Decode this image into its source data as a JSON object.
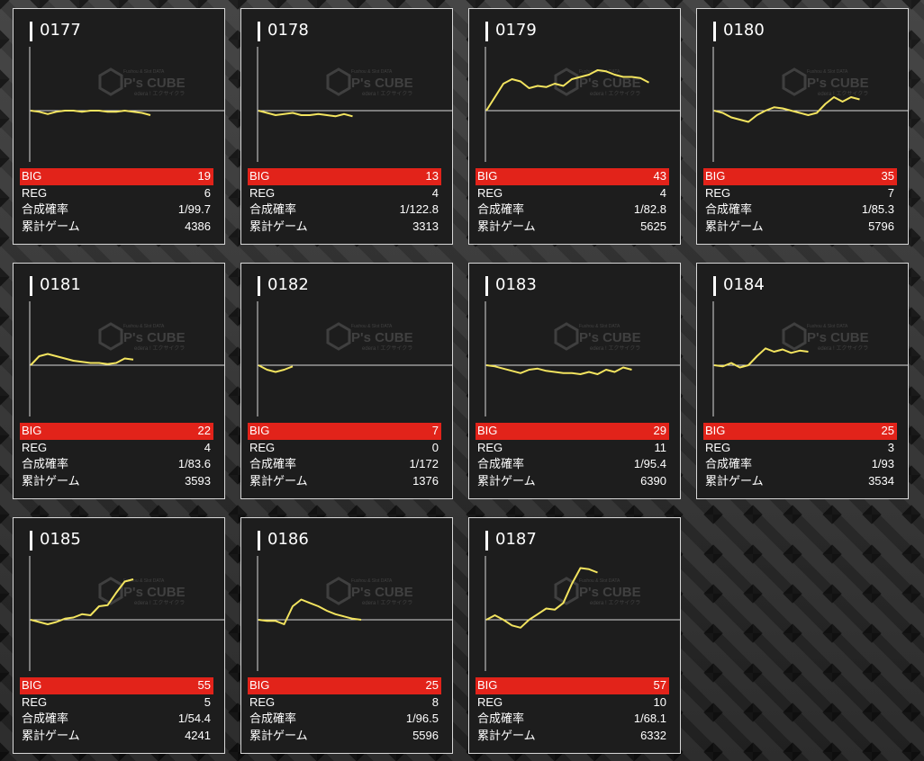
{
  "watermark": {
    "small_text": "Fushou & Slot DATA",
    "brand": "P's CUBE",
    "sub_text": "edera ! エクサイクラ"
  },
  "labels": {
    "big": "BIG",
    "reg": "REG",
    "rate": "合成確率",
    "games": "累計ゲーム"
  },
  "colors": {
    "card_bg": "#1d1d1d",
    "card_border": "#d8d8d8",
    "big_bar": "#e2231a",
    "line": "#f3e45f",
    "baseline": "#d9d9d9",
    "text": "#ffffff"
  },
  "machines": [
    {
      "id": "0177",
      "big": "19",
      "reg": "6",
      "rate": "1/99.7",
      "games": "4386",
      "chart_data": {
        "type": "line",
        "y": [
          0,
          -1,
          -3,
          -1,
          0,
          0,
          -1,
          0,
          0,
          -1,
          -1,
          0,
          -1,
          -2,
          -4
        ]
      }
    },
    {
      "id": "0178",
      "big": "13",
      "reg": "4",
      "rate": "1/122.8",
      "games": "3313",
      "chart_data": {
        "type": "line",
        "y": [
          0,
          -2,
          -4,
          -3,
          -2,
          -4,
          -4,
          -3,
          -4,
          -5,
          -3,
          -5
        ]
      }
    },
    {
      "id": "0179",
      "big": "43",
      "reg": "4",
      "rate": "1/82.8",
      "games": "5625",
      "chart_data": {
        "type": "line",
        "y": [
          0,
          12,
          24,
          28,
          26,
          20,
          22,
          21,
          24,
          22,
          28,
          30,
          32,
          36,
          35,
          32,
          30,
          30,
          29,
          25
        ]
      }
    },
    {
      "id": "0180",
      "big": "35",
      "reg": "7",
      "rate": "1/85.3",
      "games": "5796",
      "chart_data": {
        "type": "line",
        "y": [
          0,
          -2,
          -6,
          -8,
          -10,
          -4,
          0,
          3,
          2,
          0,
          -2,
          -4,
          -2,
          6,
          12,
          8,
          12,
          10
        ]
      }
    },
    {
      "id": "0181",
      "big": "22",
      "reg": "4",
      "rate": "1/83.6",
      "games": "3593",
      "chart_data": {
        "type": "line",
        "y": [
          0,
          8,
          10,
          8,
          6,
          4,
          3,
          2,
          2,
          1,
          2,
          6,
          5
        ]
      }
    },
    {
      "id": "0182",
      "big": "7",
      "reg": "0",
      "rate": "1/172",
      "games": "1376",
      "chart_data": {
        "type": "line",
        "y": [
          0,
          -4,
          -6,
          -4,
          -1
        ]
      }
    },
    {
      "id": "0183",
      "big": "29",
      "reg": "11",
      "rate": "1/95.4",
      "games": "6390",
      "chart_data": {
        "type": "line",
        "y": [
          0,
          -1,
          -3,
          -5,
          -7,
          -4,
          -3,
          -5,
          -6,
          -7,
          -7,
          -8,
          -6,
          -8,
          -4,
          -6,
          -2,
          -4
        ]
      }
    },
    {
      "id": "0184",
      "big": "25",
      "reg": "3",
      "rate": "1/93",
      "games": "3534",
      "chart_data": {
        "type": "line",
        "y": [
          0,
          -1,
          2,
          -2,
          0,
          8,
          15,
          12,
          14,
          11,
          13,
          12
        ]
      }
    },
    {
      "id": "0185",
      "big": "55",
      "reg": "5",
      "rate": "1/54.4",
      "games": "4241",
      "chart_data": {
        "type": "line",
        "y": [
          0,
          -2,
          -4,
          -2,
          1,
          2,
          5,
          4,
          12,
          13,
          24,
          34,
          36
        ]
      }
    },
    {
      "id": "0186",
      "big": "25",
      "reg": "8",
      "rate": "1/96.5",
      "games": "5596",
      "chart_data": {
        "type": "line",
        "y": [
          0,
          -1,
          -1,
          -4,
          12,
          18,
          15,
          12,
          8,
          5,
          3,
          1,
          0
        ]
      }
    },
    {
      "id": "0187",
      "big": "57",
      "reg": "10",
      "rate": "1/68.1",
      "games": "6332",
      "chart_data": {
        "type": "line",
        "y": [
          0,
          4,
          0,
          -5,
          -7,
          0,
          5,
          10,
          9,
          15,
          32,
          46,
          45,
          42
        ]
      }
    }
  ]
}
